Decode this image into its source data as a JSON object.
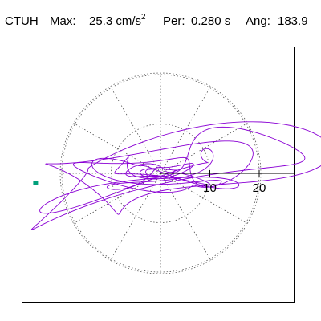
{
  "header": {
    "station": "CTUH",
    "max_label": "Max:",
    "max_value": "25.3 cm/s",
    "max_exp": "2",
    "per_label": "Per:",
    "per_value": "0.280 s",
    "ang_label": "Ang:",
    "ang_value": "183.9"
  },
  "colors": {
    "trace": "#8a00d4",
    "marker": "#00a07a",
    "grid": "#555555",
    "frame": "#000000"
  },
  "chart_data": {
    "type": "polar-hodogram",
    "title": "CTUH Max: 25.3 cm/s2 Per: 0.280 s Ang: 183.9",
    "rings": [
      10,
      20
    ],
    "ring_tick_labels": [
      "10",
      "20"
    ],
    "spoke_angles_deg": [
      0,
      30,
      60,
      90,
      120,
      150,
      180,
      210,
      240,
      270,
      300,
      330
    ],
    "max_amplitude": 25.3,
    "max_angle_deg": 183.9,
    "grid": "dotted",
    "trace_units": "cm/s2"
  }
}
